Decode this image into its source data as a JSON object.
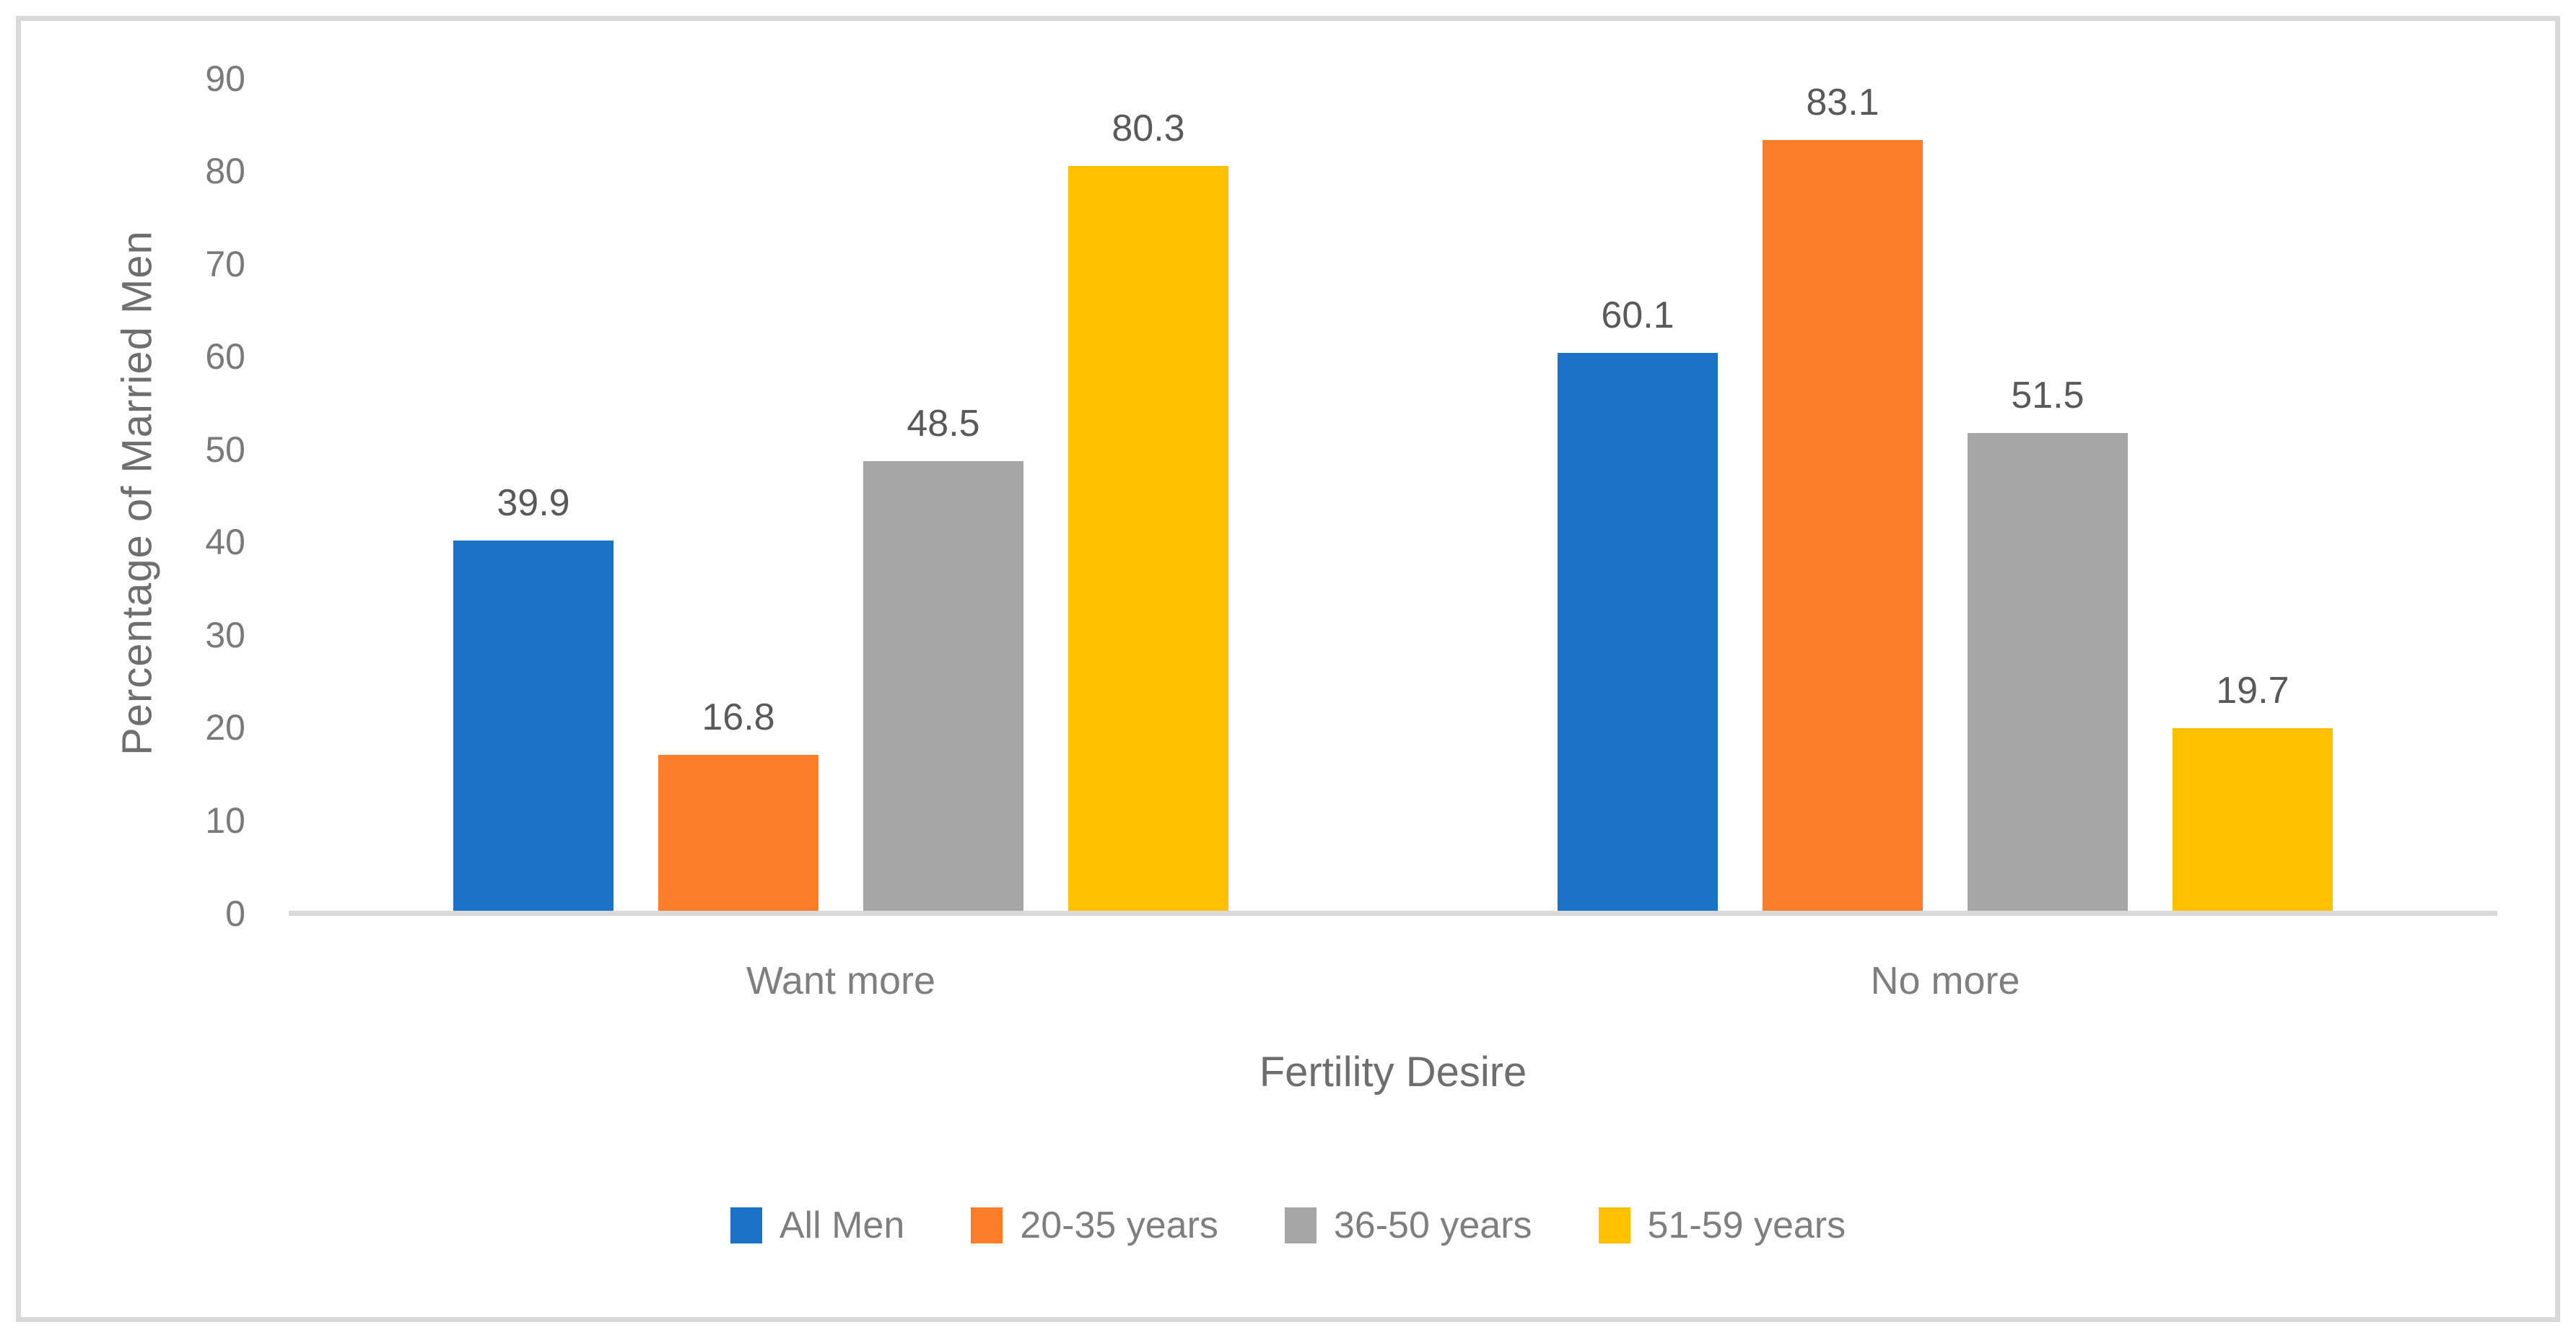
{
  "colors": {
    "axis_line": "#D9D9D9",
    "figure_border": "#D9D9D9",
    "tick_text": "#7A7A7A",
    "data_label_text": "#595959",
    "axis_title_text": "#6E6E6E",
    "legend_text": "#7F7F7F"
  },
  "chart_data": {
    "type": "bar",
    "title": "",
    "categories": [
      "Want more",
      "No more"
    ],
    "series": [
      {
        "name": "All Men",
        "color": "#1B73C8",
        "values": [
          39.9,
          60.1
        ]
      },
      {
        "name": "20-35 years",
        "color": "#FD7E28",
        "values": [
          16.8,
          83.1
        ]
      },
      {
        "name": "36-50 years",
        "color": "#A6A6A6",
        "values": [
          48.5,
          51.5
        ]
      },
      {
        "name": "51-59 years",
        "color": "#FFC000",
        "values": [
          80.3,
          19.7
        ]
      }
    ],
    "xlabel": "Fertility Desire",
    "ylabel": "Percentage of Married Men",
    "ylim": [
      0,
      90
    ],
    "yticks": [
      0,
      10,
      20,
      30,
      40,
      50,
      60,
      70,
      80,
      90
    ],
    "grid": false,
    "data_labels": true,
    "legend_position": "bottom"
  }
}
